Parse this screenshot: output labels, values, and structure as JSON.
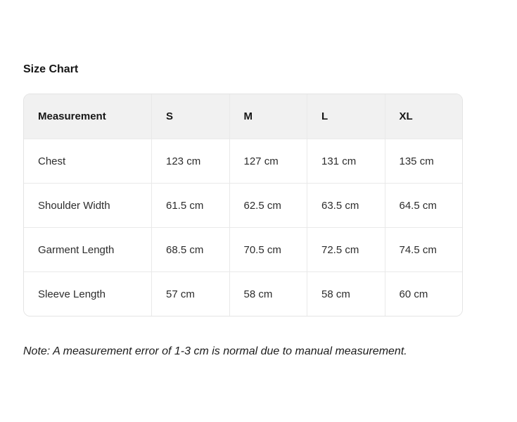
{
  "page": {
    "title": "Size Chart",
    "note": "Note: A measurement error of 1-3 cm is normal due to manual measurement."
  },
  "size_chart": {
    "columns": [
      "Measurement",
      "S",
      "M",
      "L",
      "XL"
    ],
    "rows": [
      {
        "label": "Chest",
        "values": [
          "123 cm",
          "127 cm",
          "131 cm",
          "135 cm"
        ]
      },
      {
        "label": "Shoulder Width",
        "values": [
          "61.5 cm",
          "62.5 cm",
          "63.5 cm",
          "64.5 cm"
        ]
      },
      {
        "label": "Garment Length",
        "values": [
          "68.5 cm",
          "70.5 cm",
          "72.5 cm",
          "74.5 cm"
        ]
      },
      {
        "label": "Sleeve Length",
        "values": [
          "57 cm",
          "58 cm",
          "58 cm",
          "60 cm"
        ]
      }
    ]
  },
  "colors": {
    "header_bg": "#f1f1f1",
    "border": "#e9e9e9",
    "outer_border": "#e4e4e4",
    "title_text": "#151515",
    "body_text": "#2d2d2d",
    "background": "#ffffff"
  }
}
